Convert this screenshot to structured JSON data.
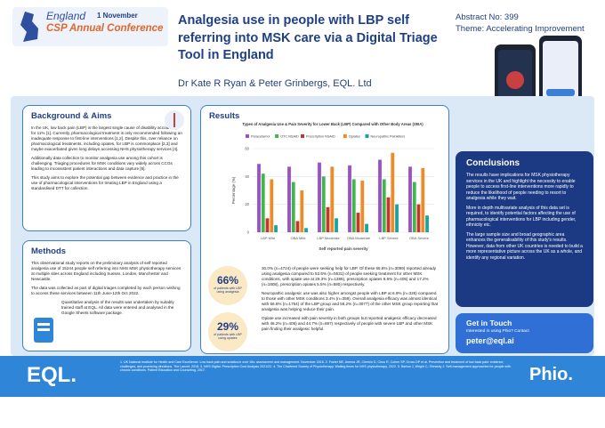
{
  "header": {
    "place": "England",
    "date": "1 November",
    "conference": "CSP Annual Conference",
    "title": "Analgesia use in people with LBP self referring into MSK care via a Digital Triage Tool in England",
    "authors": "Dr Kate R Ryan & Peter Grinbergs, EQL. Ltd",
    "abstract": "Abstract No: 399",
    "theme": "Theme: Accelerating Improvement"
  },
  "background": {
    "heading": "Background & Aims",
    "paragraphs": [
      "In the UK, low back pain (LBP) is the largest single cause of disability accounting for 11% [1]. Currently, pharmacological treatment is only recommended following an inadequate response to first-line interventions [1,2]. Despite this, over reliance on pharmacological treatments, including opiates, for LBP is commonplace [2,3] and maybe exacerbated given long delays accessing NHS physiotherapy services [4].",
      "Additionally data collection to monitor analgesia use among this cohort is challenging. Triaging procedures for MSK conditions vary widely across CCGs leading to inconsistent patient interactions and data capture [5].",
      "This study aims to explore the potential gap between evidence and practice in the use of pharmacological interventions for treating LBP in England using a standardised DTT for collection."
    ]
  },
  "methods": {
    "heading": "Methods",
    "paragraphs": [
      "This observational study reports on the preliminary analysis of self reported analgesia use of 15244 people self referring into NHS MSK physiotherapy services at multiple sites across England including Sussex, London, Manchester and Newcastle.",
      "The data was collected as part of digital triages completed by each person wishing to access these services between 11th June-12th Oct 2022.",
      "Quantitative analysis of the results was undertaken by suitably trained staff at EQL. All data were entered and analysed in the Google Sheets software package."
    ]
  },
  "results": {
    "heading": "Results",
    "stats": [
      {
        "value": "66%",
        "label": "of patients with LBP using analgesia"
      },
      {
        "value": "29%",
        "label": "of patients with LBP using opiates"
      }
    ],
    "paragraphs": [
      "30.0% (n=4724) of people were seeking help for LBP. Of these 65.6% (n=3099) reported already using analgesia compared to 52.6% (n=5531) of people seeking treatment for other MSK conditions, with opiate use at 29.3% (n=1385), prescription opiates 8.6% (n=405) and 17.2% (n=1808), prescription opiates 5.5% (n=580) respectively.",
      "Neuropathic analgesic use was also higher amongst people with LBP at 6.9% (n=326) compared to those with other MSK conditions 3.4% (n=359). Overall analgesia efficacy was almost identical with 56.6% (n=1754) of the LBP group and 56.2% (n=3077) of the other MSK group reporting that analgesia was helping reduce their pain.",
      "Opiate use increased with pain severity in both groups but reported analgesic efficacy decreased with 46.2% (n=406) and 44.7% (n=697) respectively of people with severe LBP and other MSK pain finding their analgesic helpful."
    ]
  },
  "chart_data": {
    "type": "bar",
    "title": "Types of Analgesia Use & Pain Severity for Lower Back (LBP) Compared with Other Body Areas (OBA)",
    "x_label": "Self reported pain severity",
    "y_label": "Percentage (%)",
    "categories": [
      "LBP Mild",
      "OBA Mild",
      "LBP Moderate",
      "OBA Moderate",
      "LBP Severe",
      "OBA Severe"
    ],
    "series": [
      {
        "name": "Paracetamol",
        "color": "#9b4fc9",
        "values": [
          49,
          47,
          50,
          48,
          52,
          47
        ]
      },
      {
        "name": "OTC NSAID",
        "color": "#43b649",
        "values": [
          42,
          36,
          40,
          38,
          38,
          36
        ]
      },
      {
        "name": "Prescription NSAID",
        "color": "#c0392b",
        "values": [
          10,
          8,
          18,
          14,
          25,
          20
        ]
      },
      {
        "name": "Opiates",
        "color": "#f08a24",
        "values": [
          38,
          30,
          47,
          37,
          57,
          46
        ]
      },
      {
        "name": "Neuropathic Painkillers",
        "color": "#1aa3a3",
        "values": [
          5,
          3,
          10,
          6,
          20,
          12
        ]
      }
    ],
    "ylim": [
      0,
      60
    ],
    "yticks": [
      0,
      20,
      40,
      60
    ],
    "grid": true
  },
  "conclusions": {
    "heading": "Conclusions",
    "paragraphs": [
      "The results have implications for MSK physiotherapy services in the UK and highlight the necessity to enable people to access first-line interventions more rapidly to reduce the likelihood of people needing to resort to analgesia while they wait.",
      "More in depth multivariate analysis of this data set is required, to identify potential factors affecting the use of pharmacological interventions for LBP including gender, ethnicity etc.",
      "The large sample size and broad geographic area enhances the generalisability of this study's results. However, data from other UK countries is needed to build a more representative picture across the UK as a whole, and identify any regional variation."
    ]
  },
  "contact": {
    "heading": "Get in Touch",
    "subtitle": "Interested in using Phio? Contact",
    "email": "peter@eql.ai"
  },
  "footer": {
    "logo_left": "EQL.",
    "references": "1. UK National Institute for Health and Care Excellence. Low back pain and sciatica in over 16s: assessment and management. November 2016. 2. Foster NE, Anema JR, Cherkin D, Chou R, Cohen SP, Gross DP et al. Prevention and treatment of low back pain: evidence, challenges, and promising directions. The Lancet. 2018. 3. NHS Digital. Prescription Cost Analysis 2021/22. 4. The Chartered Society of Physiotherapy. Waiting times for NHS physiotherapy. 2022. 5. Barlow J, Wright C, Sheasby J. Self-management approaches for people with chronic conditions. Patient Education and Counseling. 2017.",
    "logo_right": "Phio."
  }
}
